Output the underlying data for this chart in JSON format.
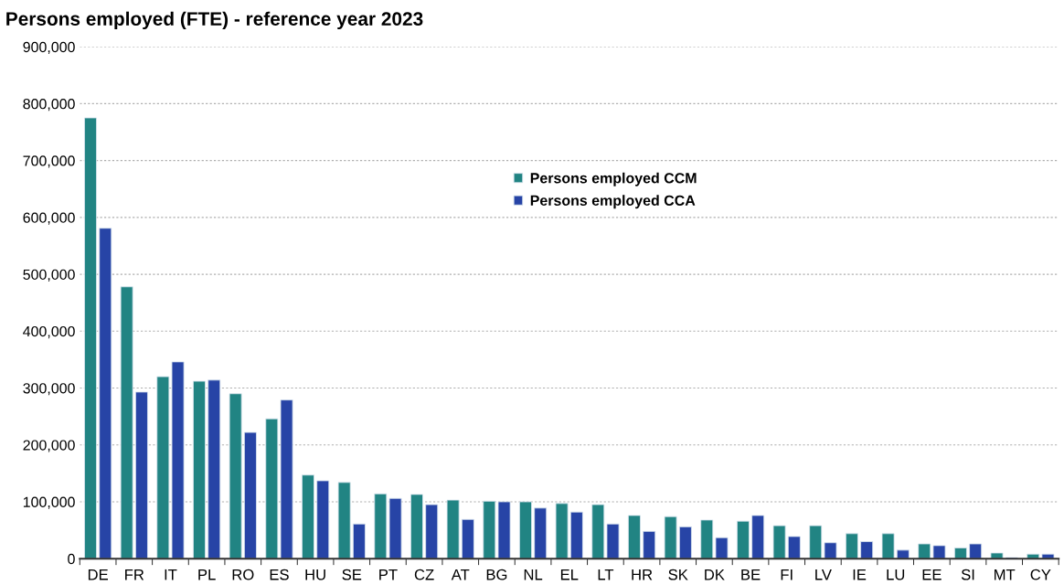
{
  "chart_data": {
    "type": "bar",
    "title": "Persons employed (FTE) - reference year 2023",
    "categories": [
      "DE",
      "FR",
      "IT",
      "PL",
      "RO",
      "ES",
      "HU",
      "SE",
      "PT",
      "CZ",
      "AT",
      "BG",
      "NL",
      "EL",
      "LT",
      "HR",
      "SK",
      "DK",
      "BE",
      "FI",
      "LV",
      "IE",
      "LU",
      "EE",
      "SI",
      "MT",
      "CY"
    ],
    "series": [
      {
        "name": "Persons employed CCM",
        "color": "#218483",
        "values": [
          775000,
          478000,
          320000,
          312000,
          290000,
          246000,
          147000,
          134000,
          114000,
          113000,
          103000,
          101000,
          100000,
          97000,
          95000,
          76000,
          74000,
          68000,
          66000,
          58000,
          58000,
          44000,
          44000,
          26000,
          19000,
          10000,
          8000
        ]
      },
      {
        "name": "Persons employed CCA",
        "color": "#2744a6",
        "values": [
          581000,
          293000,
          346000,
          314000,
          222000,
          279000,
          137000,
          61000,
          106000,
          95000,
          69000,
          100000,
          89000,
          82000,
          61000,
          48000,
          56000,
          37000,
          76000,
          39000,
          28000,
          30000,
          15000,
          23000,
          26000,
          2000,
          8000
        ]
      }
    ],
    "ylim": [
      0,
      900000
    ],
    "yticks": [
      {
        "value": 0,
        "label": "0"
      },
      {
        "value": 100000,
        "label": "100,000"
      },
      {
        "value": 200000,
        "label": "200,000"
      },
      {
        "value": 300000,
        "label": "300,000"
      },
      {
        "value": 400000,
        "label": "400,000"
      },
      {
        "value": 500000,
        "label": "500,000"
      },
      {
        "value": 600000,
        "label": "600,000"
      },
      {
        "value": 700000,
        "label": "700,000"
      },
      {
        "value": 800000,
        "label": "800,000"
      },
      {
        "value": 900000,
        "label": "900,000"
      }
    ],
    "grid": "y",
    "legend": "top center"
  }
}
